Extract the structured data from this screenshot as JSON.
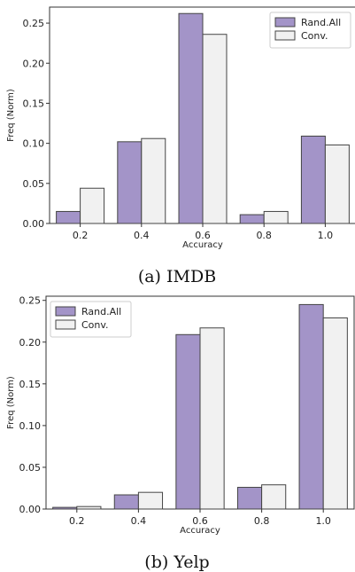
{
  "colors": {
    "series0": "#a394c8",
    "series1": "#f1f1f1",
    "edge": "#444444"
  },
  "chart_data": [
    {
      "type": "bar",
      "caption": "(a) IMDB",
      "categories": [
        "0.2",
        "0.4",
        "0.6",
        "0.8",
        "1.0"
      ],
      "series": [
        {
          "name": "Rand.All",
          "values": [
            0.015,
            0.102,
            0.262,
            0.011,
            0.109
          ]
        },
        {
          "name": "Conv.",
          "values": [
            0.044,
            0.106,
            0.236,
            0.015,
            0.098
          ]
        }
      ],
      "xlabel": "Accuracy",
      "ylabel": "Freq (Norm)",
      "ylim": [
        0,
        0.27
      ],
      "yticks": [
        "0.00",
        "0.05",
        "0.10",
        "0.15",
        "0.20",
        "0.25"
      ],
      "legend": "top-right",
      "grid": false
    },
    {
      "type": "bar",
      "caption": "(b) Yelp",
      "categories": [
        "0.2",
        "0.4",
        "0.6",
        "0.8",
        "1.0"
      ],
      "series": [
        {
          "name": "Rand.All",
          "values": [
            0.002,
            0.017,
            0.209,
            0.026,
            0.245
          ]
        },
        {
          "name": "Conv.",
          "values": [
            0.003,
            0.02,
            0.217,
            0.029,
            0.229
          ]
        }
      ],
      "xlabel": "Accuracy",
      "ylabel": "Freq (Norm)",
      "ylim": [
        0,
        0.255
      ],
      "yticks": [
        "0.00",
        "0.05",
        "0.10",
        "0.15",
        "0.20",
        "0.25"
      ],
      "legend": "top-left",
      "grid": false
    }
  ]
}
